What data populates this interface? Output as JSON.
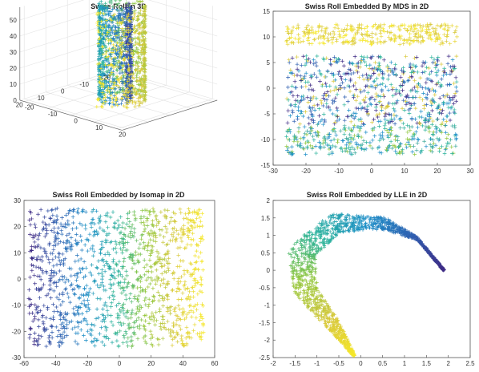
{
  "figure": {
    "colormap": [
      "#3e2a84",
      "#2f5fb0",
      "#1f8fc8",
      "#2ab39a",
      "#8fc63c",
      "#d8c83a",
      "#f6e829"
    ],
    "marker": "+"
  },
  "chart_data": [
    {
      "type": "scatter3d",
      "title": "Swiss Roll in 3D",
      "shape": "swiss-roll",
      "point_count": 1600,
      "zlim": [
        0,
        60
      ],
      "z_ticks": [
        "0",
        "10",
        "20",
        "30",
        "40",
        "50"
      ],
      "x_ticks": [
        "-20",
        "-10",
        "0",
        "10",
        "20"
      ],
      "y_ticks": [
        "20",
        "10",
        "0",
        "-10",
        "-20"
      ],
      "grid": true
    },
    {
      "type": "scatter",
      "title": "Swiss Roll Embedded By MDS in 2D",
      "xlim": [
        -30,
        30
      ],
      "ylim": [
        -15,
        15
      ],
      "x_ticks": [
        "-30",
        "-20",
        "-10",
        "0",
        "10",
        "20",
        "30"
      ],
      "y_ticks": [
        "-15",
        "-10",
        "-5",
        "0",
        "5",
        "10",
        "15"
      ],
      "bands": [
        {
          "y_range": [
            8.5,
            12.5
          ],
          "colors": [
            "#f6e829",
            "#e8d63a",
            "#d8c83a"
          ]
        },
        {
          "y_range": [
            -7,
            6.3
          ],
          "colors": [
            "#2f5fb0",
            "#3e2a84",
            "#1f8fc8",
            "#2ab39a",
            "#d8c83a"
          ]
        },
        {
          "y_range": [
            -13,
            -7
          ],
          "colors": [
            "#2ab39a",
            "#3aa79a",
            "#1f8fc8",
            "#8fc63c"
          ]
        }
      ]
    },
    {
      "type": "scatter",
      "title": "Swiss Roll Embedded by Isomap in 2D",
      "xlim": [
        -60,
        60
      ],
      "ylim": [
        -30,
        30
      ],
      "x_ticks": [
        "-60",
        "-40",
        "-20",
        "0",
        "20",
        "40",
        "60"
      ],
      "y_ticks": [
        "-30",
        "-20",
        "-10",
        "0",
        "10",
        "20",
        "30"
      ],
      "x_extent": [
        -57,
        53
      ],
      "y_extent": [
        -26,
        27
      ],
      "color_by": "x"
    },
    {
      "type": "scatter",
      "title": "Swiss Roll Embedded by LLE in 2D",
      "xlim": [
        -2,
        2.5
      ],
      "ylim": [
        -2.5,
        2
      ],
      "x_ticks": [
        "-2",
        "-1.5",
        "-1",
        "-0.5",
        "0",
        "0.5",
        "1",
        "1.5",
        "2",
        "2.5"
      ],
      "y_ticks": [
        "-2.5",
        "-2",
        "-1.5",
        "-1",
        "-0.5",
        "0",
        "0.5",
        "1",
        "1.5",
        "2"
      ],
      "region_outline": [
        [
          -0.2,
          -2.5
        ],
        [
          -0.55,
          -1.9
        ],
        [
          -1.25,
          -1.0
        ],
        [
          -1.6,
          0.1
        ],
        [
          -1.5,
          0.9
        ],
        [
          -1.0,
          1.35
        ],
        [
          -0.3,
          1.5
        ],
        [
          0.6,
          1.5
        ],
        [
          1.2,
          1.2
        ],
        [
          1.7,
          0.6
        ],
        [
          2.0,
          -0.15
        ],
        [
          1.85,
          -0.1
        ],
        [
          1.45,
          0.25
        ],
        [
          1.0,
          0.25
        ],
        [
          0.5,
          0.1
        ],
        [
          0.0,
          -0.25
        ],
        [
          -0.35,
          -0.6
        ],
        [
          -0.3,
          -1.2
        ],
        [
          -0.15,
          -2.0
        ],
        [
          -0.12,
          -2.5
        ]
      ],
      "color_by": "arc-length"
    }
  ]
}
